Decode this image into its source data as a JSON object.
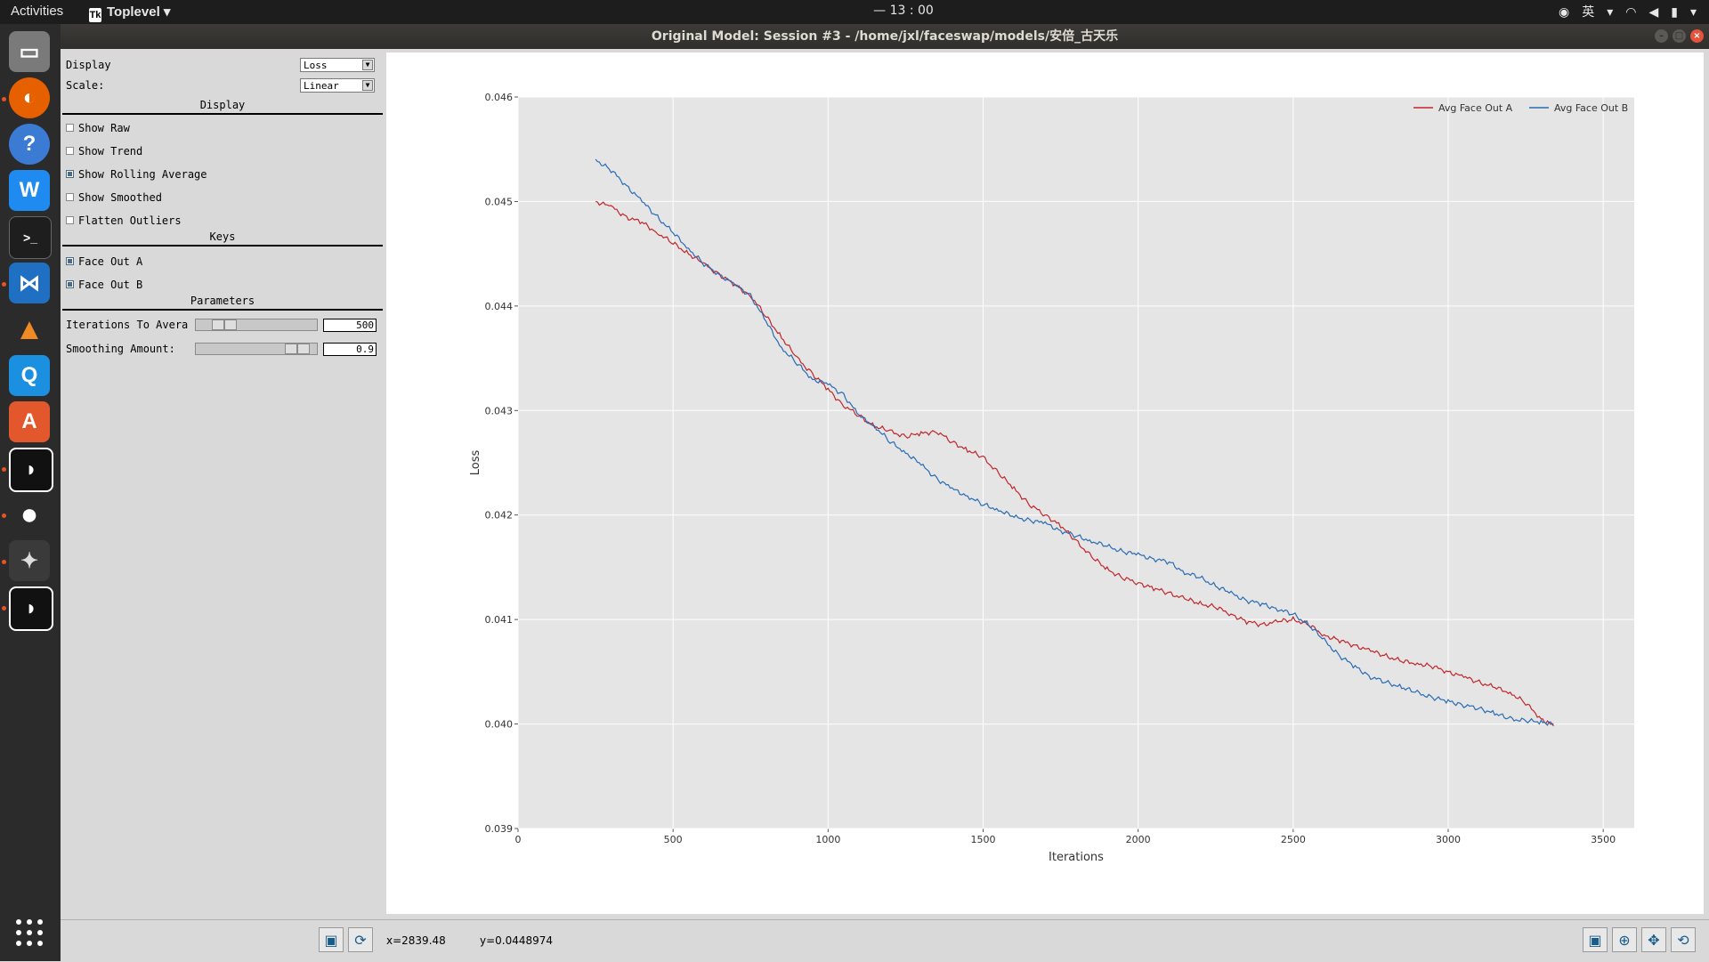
{
  "topbar": {
    "activities": "Activities",
    "app_name": "Toplevel",
    "clock": "— 13 : 00",
    "input_method": "英"
  },
  "window": {
    "title": "Original Model: Session #3 - /home/jxl/faceswap/models/安倍_古天乐"
  },
  "panel": {
    "display_label": "Display",
    "display_value": "Loss",
    "scale_label": "Scale:",
    "scale_value": "Linear",
    "section_display": "Display",
    "show_raw": "Show Raw",
    "show_trend": "Show Trend",
    "show_rolling_average": "Show Rolling Average",
    "show_smoothed": "Show Smoothed",
    "flatten_outliers": "Flatten Outliers",
    "section_keys": "Keys",
    "face_out_a": "Face Out A",
    "face_out_b": "Face Out B",
    "section_parameters": "Parameters",
    "iterations_label": "Iterations To Avera",
    "iterations_value": "500",
    "smoothing_label": "Smoothing Amount:",
    "smoothing_value": "0.9"
  },
  "status": {
    "x": "x=2839.48",
    "y": "y=0.0448974"
  },
  "chart_data": {
    "type": "line",
    "xlabel": "Iterations",
    "ylabel": "Loss",
    "xlim": [
      0,
      3600
    ],
    "ylim": [
      0.039,
      0.046
    ],
    "xticks": [
      0,
      500,
      1000,
      1500,
      2000,
      2500,
      3000,
      3500
    ],
    "yticks": [
      0.039,
      0.04,
      0.041,
      0.042,
      0.043,
      0.044,
      0.045,
      0.046
    ],
    "grid": true,
    "legend": "top-right",
    "series": [
      {
        "name": "Avg Face Out A",
        "color": "#c0272d",
        "x": [
          250,
          300,
          350,
          400,
          450,
          500,
          550,
          600,
          650,
          700,
          750,
          800,
          850,
          900,
          950,
          1000,
          1050,
          1100,
          1150,
          1200,
          1250,
          1300,
          1350,
          1400,
          1450,
          1500,
          1550,
          1600,
          1650,
          1700,
          1750,
          1800,
          1850,
          1900,
          1950,
          2000,
          2050,
          2100,
          2150,
          2200,
          2250,
          2300,
          2350,
          2400,
          2450,
          2500,
          2550,
          2600,
          2650,
          2700,
          2750,
          2800,
          2850,
          2900,
          2950,
          3000,
          3050,
          3100,
          3150,
          3200,
          3250,
          3300,
          3340
        ],
        "y": [
          0.045,
          0.04495,
          0.04485,
          0.0448,
          0.0447,
          0.0446,
          0.0445,
          0.0444,
          0.0443,
          0.0442,
          0.0441,
          0.0439,
          0.0437,
          0.0435,
          0.04335,
          0.0432,
          0.04305,
          0.04295,
          0.04285,
          0.0428,
          0.04275,
          0.04278,
          0.0428,
          0.0427,
          0.04262,
          0.04255,
          0.0424,
          0.04225,
          0.0421,
          0.042,
          0.0419,
          0.04175,
          0.0416,
          0.04148,
          0.0414,
          0.04135,
          0.0413,
          0.04125,
          0.0412,
          0.04115,
          0.04112,
          0.04105,
          0.04098,
          0.04095,
          0.04098,
          0.041,
          0.04095,
          0.04085,
          0.0408,
          0.04075,
          0.0407,
          0.04065,
          0.0406,
          0.04058,
          0.04055,
          0.0405,
          0.04045,
          0.0404,
          0.04035,
          0.0403,
          0.0402,
          0.04005,
          0.03998
        ]
      },
      {
        "name": "Avg Face Out B",
        "color": "#2a6cb3",
        "x": [
          250,
          300,
          350,
          400,
          450,
          500,
          550,
          600,
          650,
          700,
          750,
          800,
          850,
          900,
          950,
          1000,
          1050,
          1100,
          1150,
          1200,
          1250,
          1300,
          1350,
          1400,
          1450,
          1500,
          1550,
          1600,
          1650,
          1700,
          1750,
          1800,
          1850,
          1900,
          1950,
          2000,
          2050,
          2100,
          2150,
          2200,
          2250,
          2300,
          2350,
          2400,
          2450,
          2500,
          2550,
          2600,
          2650,
          2700,
          2750,
          2800,
          2850,
          2900,
          2950,
          3000,
          3050,
          3100,
          3150,
          3200,
          3250,
          3300,
          3340
        ],
        "y": [
          0.0454,
          0.0453,
          0.04515,
          0.045,
          0.04485,
          0.0447,
          0.04455,
          0.0444,
          0.0443,
          0.0442,
          0.0441,
          0.04385,
          0.0436,
          0.04345,
          0.0433,
          0.04325,
          0.04315,
          0.04295,
          0.04285,
          0.0427,
          0.0426,
          0.04248,
          0.04235,
          0.04225,
          0.04218,
          0.0421,
          0.04205,
          0.04198,
          0.04195,
          0.04192,
          0.04185,
          0.0418,
          0.04175,
          0.0417,
          0.04165,
          0.04162,
          0.04158,
          0.04155,
          0.04145,
          0.0414,
          0.04132,
          0.04125,
          0.04118,
          0.04115,
          0.0411,
          0.04105,
          0.04095,
          0.0408,
          0.04065,
          0.04055,
          0.04045,
          0.0404,
          0.04035,
          0.0403,
          0.04025,
          0.04022,
          0.04018,
          0.04015,
          0.0401,
          0.04005,
          0.04003,
          0.04002,
          0.04
        ]
      }
    ]
  }
}
